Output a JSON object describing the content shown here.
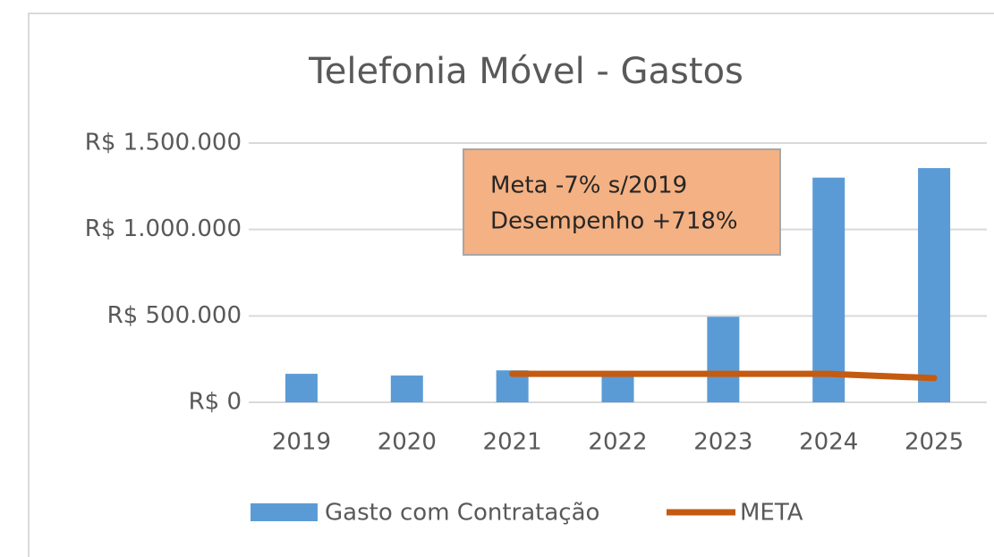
{
  "chart_data": {
    "type": "bar",
    "title": "Telefonia Móvel - Gastos",
    "categories": [
      "2019",
      "2020",
      "2021",
      "2022",
      "2023",
      "2024",
      "2025"
    ],
    "series": [
      {
        "name": "Gasto com Contratação",
        "type": "bar",
        "color": "#5b9bd5",
        "values": [
          165000,
          155000,
          185000,
          160000,
          495000,
          1300000,
          1355000
        ]
      },
      {
        "name": "META",
        "type": "line",
        "color": "#c55a11",
        "values": [
          null,
          null,
          165000,
          165000,
          165000,
          165000,
          140000
        ]
      }
    ],
    "ylim": [
      0,
      1500000
    ],
    "yticks": [
      {
        "value": 0,
        "label": "R$ 0"
      },
      {
        "value": 500000,
        "label": "R$ 500.000"
      },
      {
        "value": 1000000,
        "label": "R$ 1.000.000"
      },
      {
        "value": 1500000,
        "label": "R$ 1.500.000"
      }
    ],
    "grid": true,
    "legend": "bottom",
    "annotations": [
      "Meta -7% s/2019",
      "Desempenho +718%"
    ]
  }
}
